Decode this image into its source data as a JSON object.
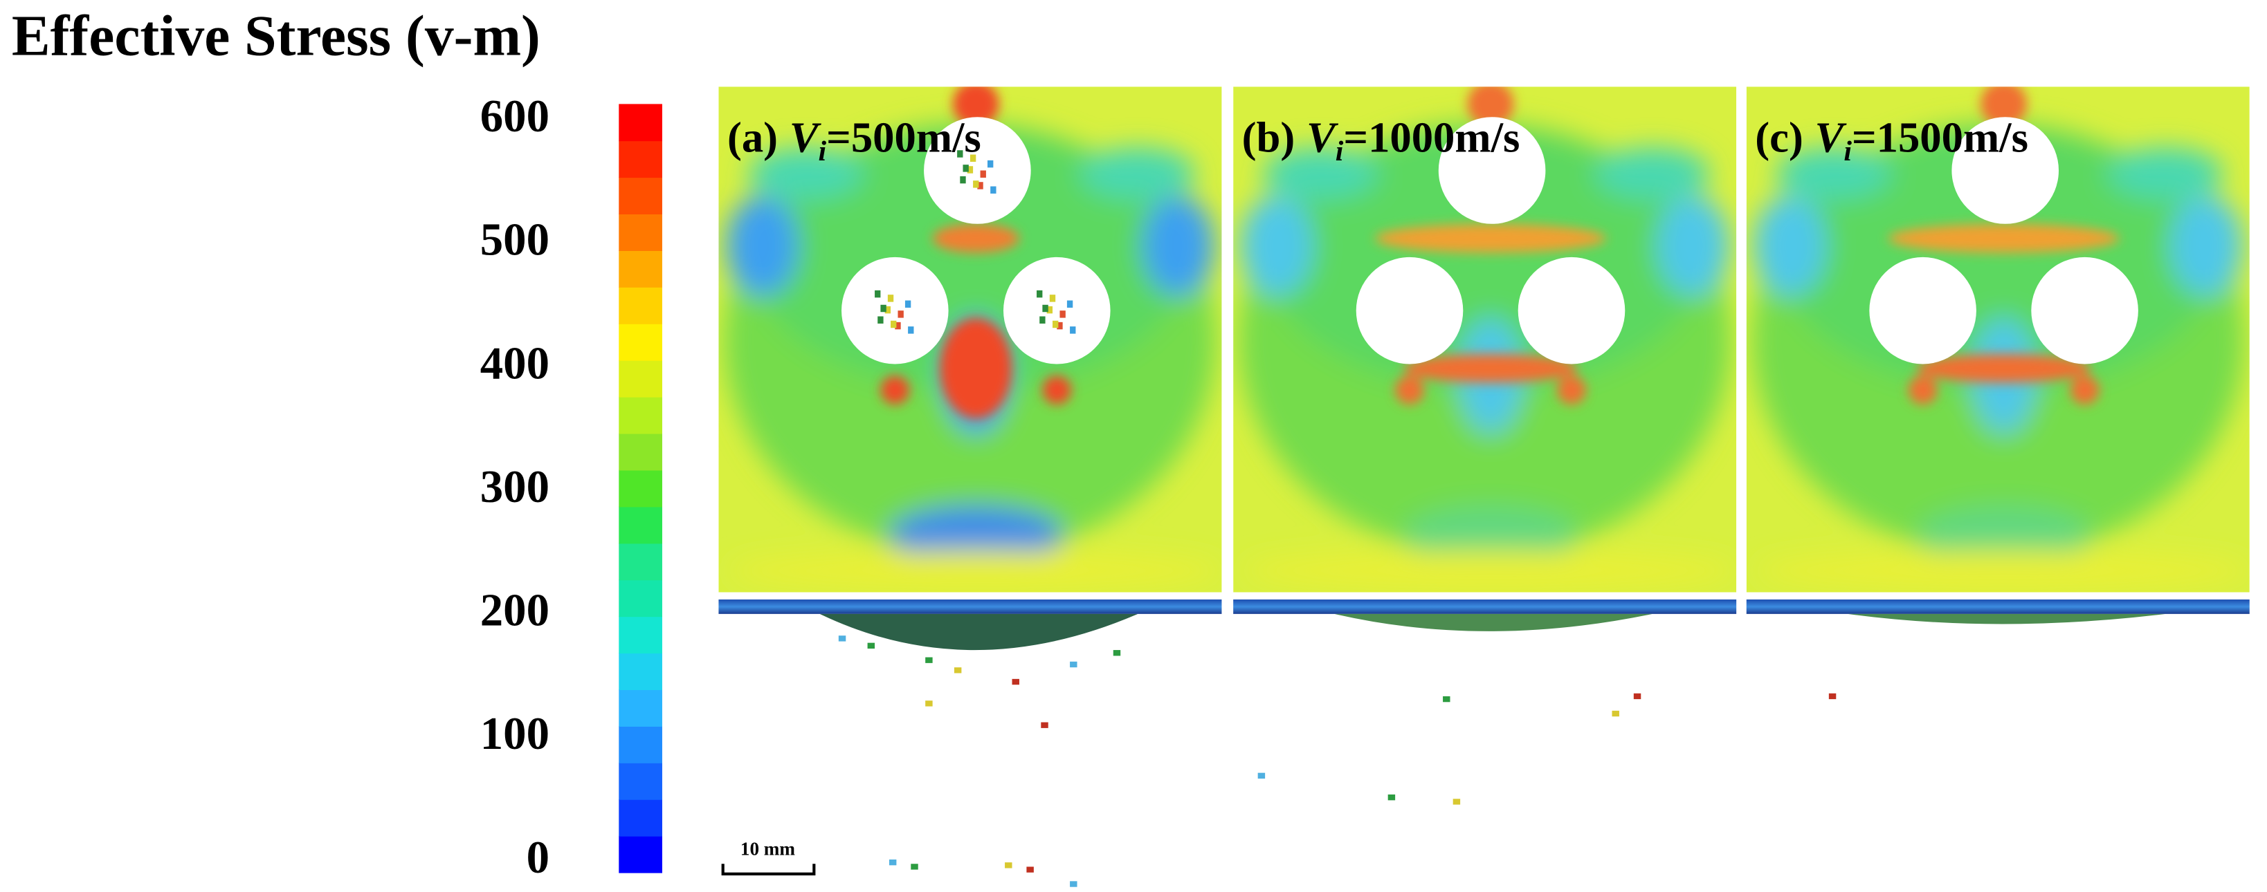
{
  "title": "Effective Stress (v-m)",
  "colorbar": {
    "ticks": [
      0,
      100,
      200,
      300,
      400,
      500,
      600
    ],
    "colors": [
      "#0000ff",
      "#0a3cff",
      "#1464ff",
      "#1e8cff",
      "#28b4ff",
      "#1ed2f0",
      "#14e6d2",
      "#14e6aa",
      "#1ee68c",
      "#28e650",
      "#50e628",
      "#8ce628",
      "#b4f01e",
      "#dcf014",
      "#fff000",
      "#ffd200",
      "#ffaa00",
      "#ff7800",
      "#ff5000",
      "#ff2800",
      "#ff0000"
    ]
  },
  "panels": [
    {
      "prefix": "(a)",
      "symbol": "V",
      "subscript": "i",
      "value": "=500m/s"
    },
    {
      "prefix": "(b)",
      "symbol": "V",
      "subscript": "i",
      "value": "=1000m/s"
    },
    {
      "prefix": "(c)",
      "symbol": "V",
      "subscript": "i",
      "value": "=1500m/s"
    }
  ],
  "scale_bar": "10 mm"
}
